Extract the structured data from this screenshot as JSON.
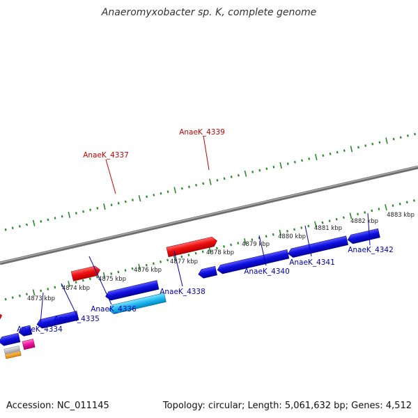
{
  "title": "Anaeromyxobacter sp. K, complete genome",
  "footer": {
    "accession": "Accession: NC_011145",
    "stats": "Topology: circular; Length: 5,061,632 bp; Genes: 4,512"
  },
  "colors": {
    "backbone": "#7a7a7a",
    "tick": "#2a8a2a",
    "forward_label": "#cc0000",
    "reverse_label": "#0000bb"
  },
  "ruler": [
    {
      "label": "4873 kbp"
    },
    {
      "label": "4874 kbp"
    },
    {
      "label": "4875 kbp"
    },
    {
      "label": "4876 kbp"
    },
    {
      "label": "4877 kbp"
    },
    {
      "label": "4878 kbp"
    },
    {
      "label": "4879 kbp"
    },
    {
      "label": "4880 kbp"
    },
    {
      "label": "4881 kbp"
    },
    {
      "label": "4882 kbp"
    },
    {
      "label": "4883 kbp"
    }
  ],
  "forward_labels": [
    {
      "text": "AnaeK_4337"
    },
    {
      "text": "AnaeK_4339"
    }
  ],
  "reverse_labels": [
    {
      "text": "AnaeK_4334"
    },
    {
      "text": "AnaeK_4335"
    },
    {
      "text": "AnaeK_4336"
    },
    {
      "text": "AnaeK_4338"
    },
    {
      "text": "AnaeK_4340"
    },
    {
      "text": "AnaeK_4341"
    },
    {
      "text": "AnaeK_4342"
    }
  ]
}
